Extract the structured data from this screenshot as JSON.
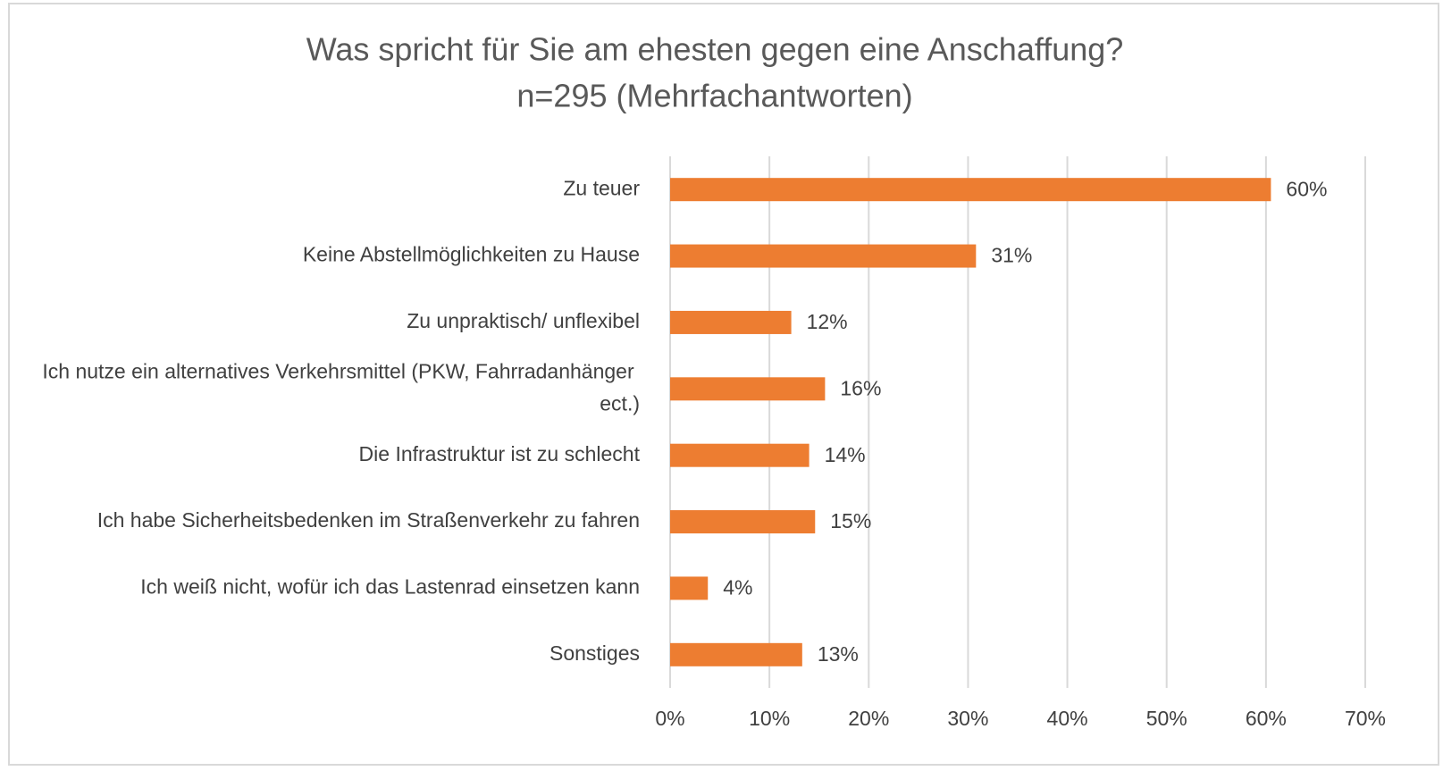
{
  "chart_data": {
    "type": "bar",
    "orientation": "horizontal",
    "title": "Was spricht für Sie am ehesten gegen eine Anschaffung?",
    "subtitle": "n=295 (Mehrfachantworten)",
    "categories": [
      "Zu teuer",
      "Keine Abstellmöglichkeiten zu Hause",
      "Zu unpraktisch/ unflexibel",
      "Ich nutze ein alternatives Verkehrsmittel (PKW, Fahrradanhänger ect.)",
      "Die Infrastruktur ist zu schlecht",
      "Ich habe Sicherheitsbedenken im Straßenverkehr zu fahren",
      "Ich weiß nicht, wofür ich das Lastenrad einsetzen kann",
      "Sonstiges"
    ],
    "values": [
      60.5,
      30.8,
      12.2,
      15.6,
      14.0,
      14.6,
      3.8,
      13.3
    ],
    "value_labels": [
      "60%",
      "31%",
      "12%",
      "16%",
      "14%",
      "15%",
      "4%",
      "13%"
    ],
    "color": "#ed7d31",
    "xlim": [
      0,
      70
    ],
    "xticks": [
      {
        "value": 0,
        "label": "0%"
      },
      {
        "value": 10,
        "label": "10%"
      },
      {
        "value": 20,
        "label": "20%"
      },
      {
        "value": 30,
        "label": "30%"
      },
      {
        "value": 40,
        "label": "40%"
      },
      {
        "value": 50,
        "label": "50%"
      },
      {
        "value": 60,
        "label": "60%"
      },
      {
        "value": 70,
        "label": "70%"
      }
    ],
    "grid": true
  }
}
